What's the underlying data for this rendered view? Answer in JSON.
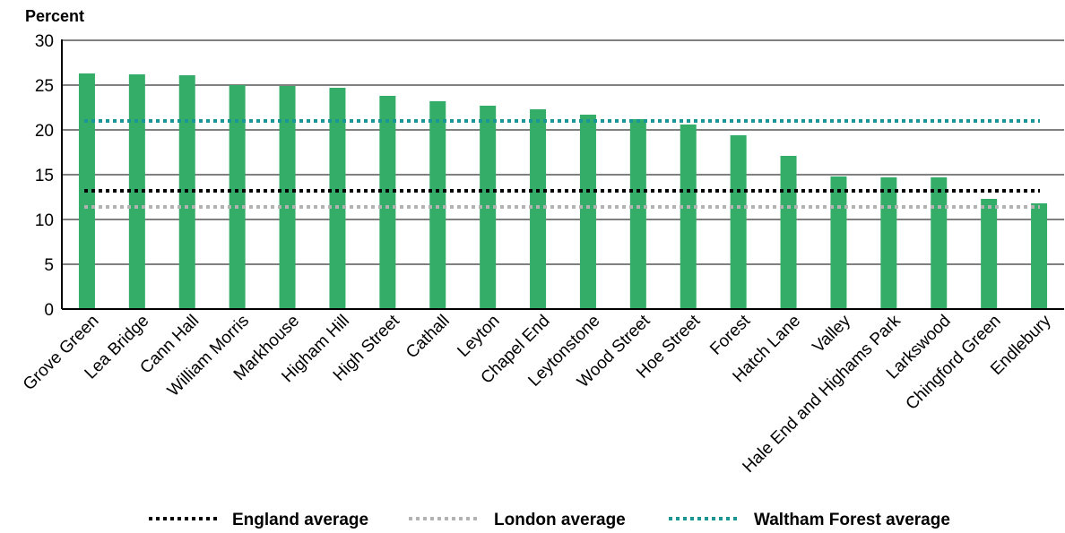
{
  "chart_data": {
    "type": "bar",
    "ylabel": "Percent",
    "ylim": [
      0,
      30
    ],
    "yticks": [
      0,
      5,
      10,
      15,
      20,
      25,
      30
    ],
    "grid": true,
    "legend_position": "bottom",
    "categories": [
      "Grove Green",
      "Lea Bridge",
      "Cann Hall",
      "William Morris",
      "Markhouse",
      "Higham Hill",
      "High Street",
      "Cathall",
      "Leyton",
      "Chapel End",
      "Leytonstone",
      "Wood Street",
      "Hoe Street",
      "Forest",
      "Hatch Lane",
      "Valley",
      "Hale End and Highams Park",
      "Larkswood",
      "Chingford Green",
      "Endlebury"
    ],
    "series": [
      {
        "values": [
          26.3,
          26.2,
          26.1,
          25.0,
          24.9,
          24.7,
          23.8,
          23.2,
          22.7,
          22.3,
          21.7,
          21.2,
          20.6,
          19.4,
          17.1,
          14.8,
          14.7,
          14.7,
          12.3,
          11.8
        ],
        "color": "#34ad68"
      }
    ],
    "reference_lines": [
      {
        "name": "England average",
        "value": 13.2,
        "color": "#000000"
      },
      {
        "name": "London average",
        "value": 11.4,
        "color": "#b3b3b3"
      },
      {
        "name": "Waltham Forest average",
        "value": 21.0,
        "color": "#1a9698"
      }
    ]
  }
}
